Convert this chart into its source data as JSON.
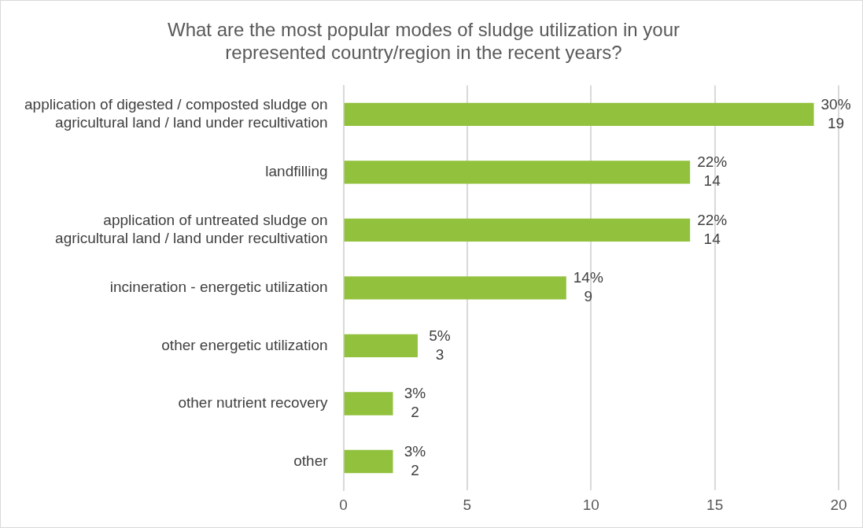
{
  "chart_data": {
    "type": "bar",
    "orientation": "horizontal",
    "title": "What are the most popular modes of sludge utilization in your represented country/region in the recent years?",
    "categories": [
      "application of digested / composted sludge on agricultural land / land under recultivation",
      "landfilling",
      "application of untreated sludge on agricultural land / land under recultivation",
      "incineration - energetic utilization",
      "other energetic utilization",
      "other nutrient recovery",
      "other"
    ],
    "values": [
      19,
      14,
      14,
      9,
      3,
      2,
      2
    ],
    "value_labels": [
      "30%\n19",
      "22%\n14",
      "22%\n14",
      "14%\n9",
      "5%\n3",
      "3%\n2",
      "3%\n2"
    ],
    "color": "#92c13e",
    "xlim": [
      0,
      20
    ],
    "xticks": [
      0,
      5,
      10,
      15,
      20
    ],
    "grid": "x",
    "legend": false
  }
}
